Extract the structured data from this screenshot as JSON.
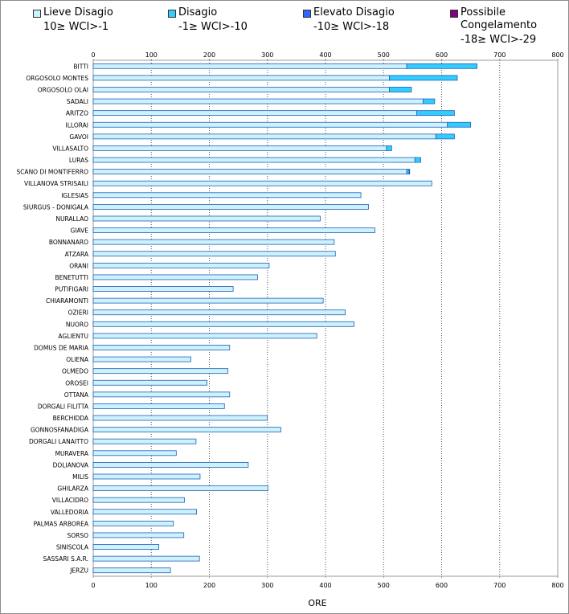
{
  "legend": [
    {
      "name": "Lieve Disagio",
      "range": "10≥ WCI>-1",
      "color": "#ccf2ff"
    },
    {
      "name": "Disagio",
      "range": "-1≥ WCI>-10",
      "color": "#33ccff"
    },
    {
      "name": "Elevato Disagio",
      "range": "-10≥ WCI>-18",
      "color": "#3366ff"
    },
    {
      "name": "Possibile Congelamento",
      "range": "-18≥ WCI>-29",
      "color": "#800080"
    }
  ],
  "chart_data": {
    "type": "bar",
    "orientation": "horizontal",
    "stacked": true,
    "xlabel": "ORE",
    "xlim": [
      0,
      800
    ],
    "xticks": [
      0,
      100,
      200,
      300,
      400,
      500,
      600,
      700,
      800
    ],
    "grid": "vertical dotted",
    "categories": [
      "BITTI",
      "ORGOSOLO MONTES",
      "ORGOSOLO OLAI",
      "SADALI",
      "ARITZO",
      "ILLORAI",
      "GAVOI",
      "VILLASALTO",
      "LURAS",
      "SCANO DI MONTIFERRO",
      "VILLANOVA STRISAILI",
      "IGLESIAS",
      "SIURGUS - DONIGALA",
      "NURALLAO",
      "GIAVE",
      "BONNANARO",
      "ATZARA",
      "ORANI",
      "BENETUTTI",
      "PUTIFIGARI",
      "CHIARAMONTI",
      "OZIERI",
      "NUORO",
      "AGLIENTU",
      "DOMUS DE MARIA",
      "OLIENA",
      "OLMEDO",
      "OROSEI",
      "OTTANA",
      "DORGALI FILITTA",
      "BERCHIDDA",
      "GONNOSFANADIGA",
      "DORGALI LANAITTO",
      "MURAVERA",
      "DOLIANOVA",
      "MILIS",
      "GHILARZA",
      "VILLACIDRO",
      "VALLEDORIA",
      "PALMAS ARBOREA",
      "SORSO",
      "SINISCOLA",
      "SASSARI S.A.R.",
      "JERZU"
    ],
    "series": [
      {
        "name": "Lieve Disagio",
        "values": [
          540,
          510,
          510,
          568,
          557,
          610,
          590,
          505,
          554,
          540,
          583,
          461,
          474,
          391,
          485,
          415,
          417,
          303,
          283,
          241,
          396,
          434,
          449,
          385,
          235,
          168,
          232,
          196,
          235,
          226,
          300,
          323,
          177,
          143,
          267,
          184,
          301,
          157,
          178,
          138,
          156,
          113,
          183,
          133
        ]
      },
      {
        "name": "Disagio",
        "values": [
          121,
          117,
          38,
          20,
          65,
          40,
          32,
          9,
          10,
          4,
          0,
          0,
          0,
          0,
          0,
          0,
          0,
          0,
          0,
          0,
          0,
          0,
          0,
          0,
          0,
          0,
          0,
          0,
          0,
          0,
          0,
          0,
          0,
          0,
          0,
          0,
          0,
          0,
          0,
          0,
          0,
          0,
          0,
          0
        ]
      },
      {
        "name": "Elevato Disagio",
        "values": [
          0,
          0,
          0,
          0,
          0,
          0,
          0,
          0,
          0,
          1,
          0,
          0,
          0,
          0,
          0,
          0,
          0,
          0,
          0,
          0,
          0,
          0,
          0,
          0,
          0,
          0,
          0,
          0,
          0,
          0,
          0,
          0,
          0,
          0,
          0,
          0,
          0,
          0,
          0,
          0,
          0,
          0,
          0,
          0
        ]
      },
      {
        "name": "Possibile Congelamento",
        "values": [
          0,
          0,
          0,
          0,
          0,
          0,
          0,
          0,
          0,
          0,
          0,
          0,
          0,
          0,
          0,
          0,
          0,
          0,
          0,
          0,
          0,
          0,
          0,
          0,
          0,
          0,
          0,
          0,
          0,
          0,
          0,
          0,
          0,
          0,
          0,
          0,
          0,
          0,
          0,
          0,
          0,
          0,
          0,
          0
        ]
      }
    ]
  }
}
